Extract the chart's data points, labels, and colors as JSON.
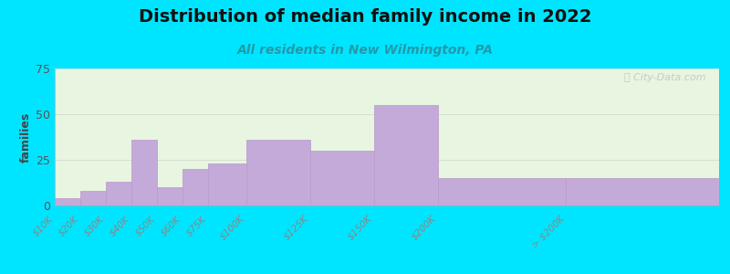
{
  "title": "Distribution of median family income in 2022",
  "subtitle": "All residents in New Wilmington, PA",
  "ylabel": "families",
  "background_outer": "#00e5ff",
  "background_inner": "#e8f5e0",
  "bar_color": "#c4aad8",
  "bar_edge_color": "#b898cc",
  "bin_edges": [
    0,
    10,
    20,
    30,
    40,
    50,
    60,
    75,
    100,
    125,
    150,
    200,
    260
  ],
  "bin_labels": [
    "$10K",
    "$20K",
    "$30K",
    "$40K",
    "$50K",
    "$60K",
    "$75K",
    "$100K",
    "$125K",
    "$150K",
    "$200K",
    "> $200K"
  ],
  "values": [
    4,
    8,
    13,
    36,
    10,
    20,
    23,
    36,
    30,
    55,
    15,
    15
  ],
  "ylim": [
    0,
    75
  ],
  "yticks": [
    0,
    25,
    50,
    75
  ],
  "watermark": "ⓘ City-Data.com",
  "title_fontsize": 14,
  "subtitle_fontsize": 10,
  "ylabel_fontsize": 9
}
